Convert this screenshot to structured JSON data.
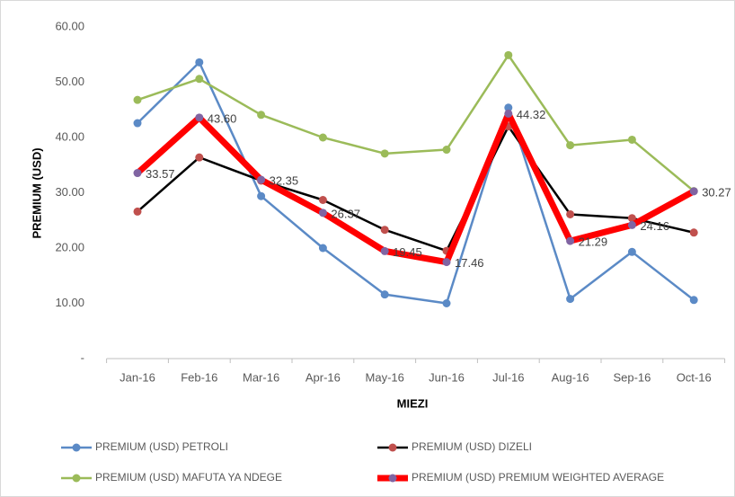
{
  "chart_data": {
    "type": "line",
    "x_label": "MIEZI",
    "y_label": "PREMIUM (USD)",
    "categories": [
      "Jan-16",
      "Feb-16",
      "Mar-16",
      "Apr-16",
      "May-16",
      "Jun-16",
      "Jul-16",
      "Aug-16",
      "Sep-16",
      "Oct-16"
    ],
    "ylim": [
      0,
      60
    ],
    "yticks": [
      {
        "value": 0,
        "label": "-"
      },
      {
        "value": 10,
        "label": "10.00"
      },
      {
        "value": 20,
        "label": "20.00"
      },
      {
        "value": 30,
        "label": "30.00"
      },
      {
        "value": 40,
        "label": "40.00"
      },
      {
        "value": 50,
        "label": "50.00"
      },
      {
        "value": 60,
        "label": "60.00"
      }
    ],
    "grid": false,
    "legend": "bottom",
    "series": [
      {
        "name": "PREMIUM (USD) PETROLI",
        "color": "#5b8ac6",
        "marker_color": "#5b8ac6",
        "line_width": 2.5,
        "values": [
          42.6,
          53.6,
          29.4,
          20.0,
          11.6,
          10.0,
          45.4,
          10.8,
          19.3,
          10.6
        ]
      },
      {
        "name": "PREMIUM (USD) DIZELI",
        "color": "#000000",
        "marker_color": "#c0504d",
        "line_width": 2.5,
        "values": [
          26.6,
          36.4,
          32.2,
          28.7,
          23.3,
          19.5,
          42.0,
          26.1,
          25.4,
          22.8
        ]
      },
      {
        "name": "PREMIUM (USD) MAFUTA YA NDEGE",
        "color": "#9bbb59",
        "marker_color": "#9bbb59",
        "line_width": 2.5,
        "values": [
          46.8,
          50.6,
          44.1,
          40.0,
          37.1,
          37.8,
          54.9,
          38.6,
          39.6,
          30.3
        ]
      },
      {
        "name": "PREMIUM (USD) PREMIUM WEIGHTED AVERAGE",
        "color": "#ff0000",
        "marker_color": "#8064a2",
        "line_width": 7,
        "values": [
          33.57,
          43.6,
          32.35,
          26.37,
          19.45,
          17.46,
          44.32,
          21.29,
          24.16,
          30.27
        ],
        "value_labels": [
          "33.57",
          "43.60",
          "32.35",
          "26.37",
          "19.45",
          "17.46",
          "44.32",
          "21.29",
          "24.16",
          "30.27"
        ]
      }
    ]
  }
}
